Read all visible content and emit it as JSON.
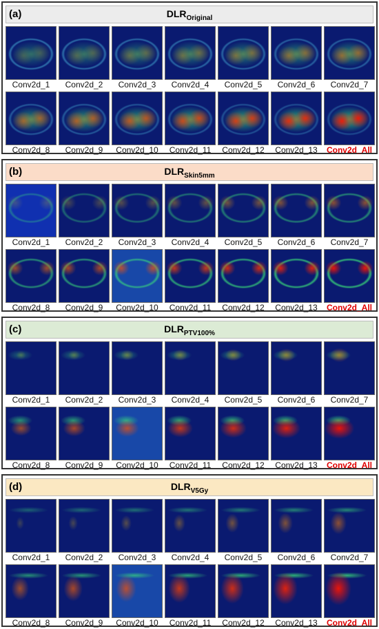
{
  "panels": [
    {
      "label": "(a)",
      "title": "DLR",
      "subscript": "Original",
      "items": [
        "Conv2d_1",
        "Conv2d_2",
        "Conv2d_3",
        "Conv2d_4",
        "Conv2d_5",
        "Conv2d_6",
        "Conv2d_7",
        "Conv2d_8",
        "Conv2d_9",
        "Conv2d_10",
        "Conv2d_11",
        "Conv2d_12",
        "Conv2d_13",
        "Conv2d_All"
      ]
    },
    {
      "label": "(b)",
      "title": "DLR",
      "subscript": "Skin5mm",
      "items": [
        "Conv2d_1",
        "Conv2d_2",
        "Conv2d_3",
        "Conv2d_4",
        "Conv2d_5",
        "Conv2d_6",
        "Conv2d_7",
        "Conv2d_8",
        "Conv2d_9",
        "Conv2d_10",
        "Conv2d_11",
        "Conv2d_12",
        "Conv2d_13",
        "Conv2d_All"
      ]
    },
    {
      "label": "(c)",
      "title": "DLR",
      "subscript": "PTV100%",
      "items": [
        "Conv2d_1",
        "Conv2d_2",
        "Conv2d_3",
        "Conv2d_4",
        "Conv2d_5",
        "Conv2d_6",
        "Conv2d_7",
        "Conv2d_8",
        "Conv2d_9",
        "Conv2d_10",
        "Conv2d_11",
        "Conv2d_12",
        "Conv2d_13",
        "Conv2d_All"
      ]
    },
    {
      "label": "(d)",
      "title": "DLR",
      "subscript": "V5Gy",
      "items": [
        "Conv2d_1",
        "Conv2d_2",
        "Conv2d_3",
        "Conv2d_4",
        "Conv2d_5",
        "Conv2d_6",
        "Conv2d_7",
        "Conv2d_8",
        "Conv2d_9",
        "Conv2d_10",
        "Conv2d_11",
        "Conv2d_12",
        "Conv2d_13",
        "Conv2d_All"
      ]
    }
  ]
}
